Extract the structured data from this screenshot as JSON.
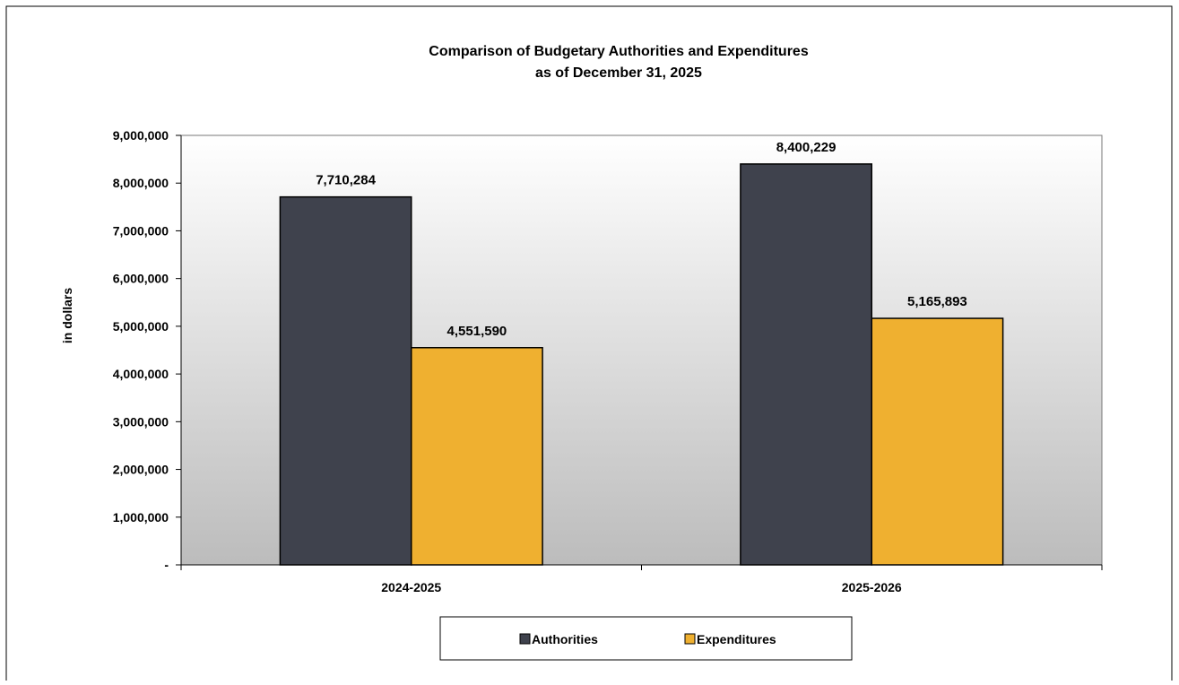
{
  "chart_data": {
    "type": "bar",
    "title": "Comparison of Budgetary Authorities and Expenditures",
    "subtitle": "as of December 31, 2025",
    "xlabel": "",
    "ylabel": "in dollars",
    "categories": [
      "2024-2025",
      "2025-2026"
    ],
    "series": [
      {
        "name": "Authorities",
        "values": [
          7710284,
          8400229
        ],
        "labels": [
          "7,710,284",
          "8,400,229"
        ],
        "color": "#3f424d"
      },
      {
        "name": "Expenditures",
        "values": [
          4551590,
          5165893
        ],
        "labels": [
          "4,551,590",
          "5,165,893"
        ],
        "color": "#efb030"
      }
    ],
    "ylim": [
      0,
      9000000
    ],
    "yticks": [
      0,
      1000000,
      2000000,
      3000000,
      4000000,
      5000000,
      6000000,
      7000000,
      8000000,
      9000000
    ],
    "ytick_labels": [
      "-",
      "1,000,000",
      "2,000,000",
      "3,000,000",
      "4,000,000",
      "5,000,000",
      "6,000,000",
      "7,000,000",
      "8,000,000",
      "9,000,000"
    ],
    "grid": false,
    "legend_position": "bottom",
    "plot_background": "gradient white-to-gray"
  }
}
